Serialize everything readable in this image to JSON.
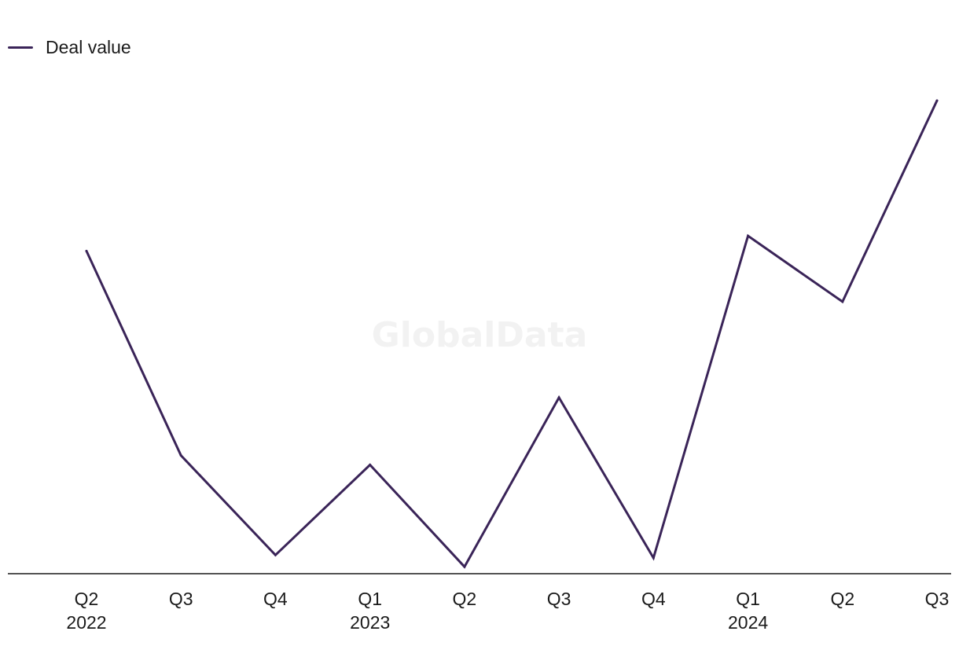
{
  "watermark": "GlobalData",
  "chart_data": {
    "type": "line",
    "categories": [
      "Q2",
      "Q3",
      "Q4",
      "Q1",
      "Q2",
      "Q3",
      "Q4",
      "Q1",
      "Q2",
      "Q3"
    ],
    "year_labels": [
      "2022",
      "",
      "",
      "2023",
      "",
      "",
      "",
      "2024",
      "",
      ""
    ],
    "series": [
      {
        "name": "Deal value",
        "color": "#3a2458",
        "values": [
          68,
          24.5,
          3.3,
          22.5,
          0.8,
          36.8,
          2.7,
          71.2,
          57.2,
          100
        ]
      }
    ],
    "ylim": [
      0,
      100
    ],
    "grid": false,
    "legend_position": "top-left",
    "title": "",
    "xlabel": "",
    "ylabel": ""
  }
}
